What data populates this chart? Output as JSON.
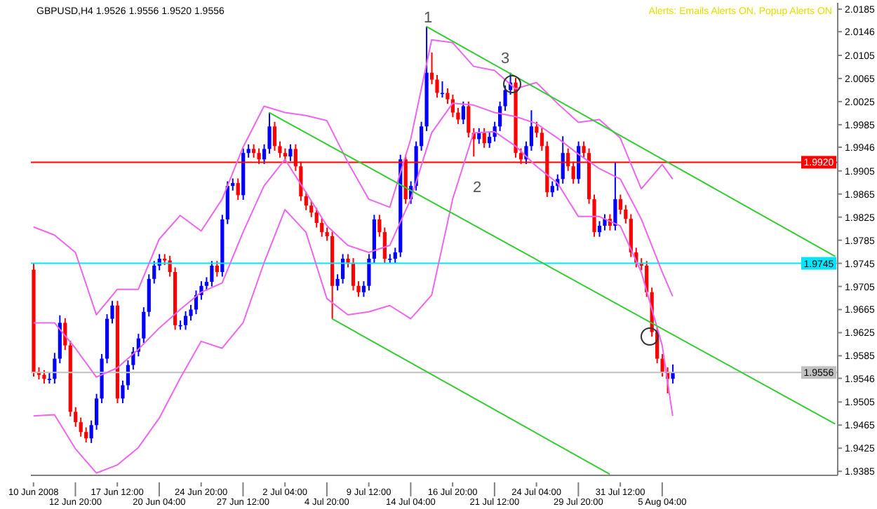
{
  "chart_data": {
    "type": "candlestick",
    "title": "GBPUSD,H4 1.9526 1.9556 1.9520 1.9556",
    "categories": [
      "10 Jun 2008",
      null,
      null,
      null,
      null,
      null,
      null,
      null,
      "12 Jun 20:00",
      null,
      null,
      null,
      null,
      null,
      null,
      null,
      "17 Jun 12:00",
      null,
      null,
      null,
      null,
      null,
      null,
      null,
      "20 Jun 04:00",
      null,
      null,
      null,
      null,
      null,
      null,
      null,
      "24 Jun 20:00",
      null,
      null,
      null,
      null,
      null,
      null,
      null,
      "27 Jun 12:00",
      null,
      null,
      null,
      null,
      null,
      null,
      null,
      "2 Jul 04:00",
      null,
      null,
      null,
      null,
      null,
      null,
      null,
      "4 Jul 20:00",
      null,
      null,
      null,
      null,
      null,
      null,
      null,
      "9 Jul 12:00",
      null,
      null,
      null,
      null,
      null,
      null,
      null,
      "14 Jul 04:00",
      null,
      null,
      null,
      null,
      null,
      null,
      null,
      "16 Jul 20:00",
      null,
      null,
      null,
      null,
      null,
      null,
      null,
      "21 Jul 12:00",
      null,
      null,
      null,
      null,
      null,
      null,
      null,
      "24 Jul 04:00",
      null,
      null,
      null,
      null,
      null,
      null,
      null,
      "29 Jul 20:00",
      null,
      null,
      null,
      null,
      null,
      null,
      null,
      "31 Jul 12:00",
      null,
      null,
      null,
      null,
      null,
      null,
      null,
      "5 Aug 04:00",
      null,
      null,
      null,
      null,
      null,
      null,
      null,
      null,
      null,
      null,
      null,
      null,
      null,
      null,
      null,
      null,
      null,
      null,
      null,
      null,
      null,
      null,
      null,
      null,
      null,
      null,
      null,
      null,
      null,
      null,
      null,
      null,
      null
    ],
    "ohlc": [
      [
        1.9734,
        1.9745,
        1.9549,
        1.9557
      ],
      [
        1.9557,
        1.9565,
        1.9544,
        1.9552
      ],
      [
        1.9552,
        1.956,
        1.9537,
        1.9545
      ],
      [
        1.9545,
        1.9556,
        1.9537,
        1.9545
      ],
      [
        1.9545,
        1.959,
        1.9537,
        1.958
      ],
      [
        1.958,
        1.9655,
        1.9572,
        1.9642
      ],
      [
        1.9642,
        1.965,
        1.9595,
        1.9603
      ],
      [
        1.9603,
        1.9611,
        1.948,
        1.9488
      ],
      [
        1.9488,
        1.9496,
        1.9462,
        1.947
      ],
      [
        1.947,
        1.9478,
        1.9445,
        1.9453
      ],
      [
        1.9453,
        1.9461,
        1.9435,
        1.9442
      ],
      [
        1.9442,
        1.9473,
        1.9434,
        1.9465
      ],
      [
        1.9465,
        1.9519,
        1.9457,
        1.9511
      ],
      [
        1.9511,
        1.9588,
        1.9503,
        1.958
      ],
      [
        1.958,
        1.9657,
        1.9572,
        1.9649
      ],
      [
        1.9649,
        1.968,
        1.9641,
        1.9672
      ],
      [
        1.9672,
        1.968,
        1.9503,
        1.9511
      ],
      [
        1.9511,
        1.9542,
        1.9503,
        1.9534
      ],
      [
        1.9534,
        1.9577,
        1.9526,
        1.9569
      ],
      [
        1.9569,
        1.96,
        1.9561,
        1.9592
      ],
      [
        1.9592,
        1.9623,
        1.9584,
        1.9615
      ],
      [
        1.9615,
        1.9669,
        1.9607,
        1.9661
      ],
      [
        1.9661,
        1.9726,
        1.9653,
        1.9718
      ],
      [
        1.9718,
        1.9749,
        1.971,
        1.9741
      ],
      [
        1.9741,
        1.9761,
        1.9733,
        1.9753
      ],
      [
        1.9753,
        1.9761,
        1.9742,
        1.975
      ],
      [
        1.975,
        1.9758,
        1.9722,
        1.973
      ],
      [
        1.973,
        1.9738,
        1.963,
        1.9638
      ],
      [
        1.9638,
        1.9646,
        1.963,
        1.9638
      ],
      [
        1.9638,
        1.9662,
        1.963,
        1.9654
      ],
      [
        1.9654,
        1.9673,
        1.9646,
        1.9665
      ],
      [
        1.9665,
        1.9698,
        1.9657,
        1.969
      ],
      [
        1.969,
        1.9714,
        1.9682,
        1.9706
      ],
      [
        1.9706,
        1.9721,
        1.9698,
        1.9713
      ],
      [
        1.9713,
        1.9749,
        1.9705,
        1.9741
      ],
      [
        1.9741,
        1.9749,
        1.9722,
        1.973
      ],
      [
        1.973,
        1.9829,
        1.9722,
        1.9821
      ],
      [
        1.9821,
        1.9887,
        1.9813,
        1.9879
      ],
      [
        1.9879,
        1.9892,
        1.9871,
        1.9884
      ],
      [
        1.9884,
        1.9892,
        1.9855,
        1.9863
      ],
      [
        1.9863,
        1.9944,
        1.9855,
        1.9936
      ],
      [
        1.9936,
        1.9951,
        1.9928,
        1.9943
      ],
      [
        1.9943,
        1.9951,
        1.9928,
        1.9936
      ],
      [
        1.9936,
        1.9944,
        1.9917,
        1.9925
      ],
      [
        1.9925,
        1.9951,
        1.9917,
        1.9943
      ],
      [
        1.9943,
        2.0006,
        1.9935,
        1.9982
      ],
      [
        1.9982,
        1.999,
        1.994,
        1.9948
      ],
      [
        1.9948,
        1.9956,
        1.9928,
        1.9936
      ],
      [
        1.9936,
        1.9944,
        1.9922,
        1.993
      ],
      [
        1.993,
        1.9951,
        1.9922,
        1.9943
      ],
      [
        1.9943,
        1.9951,
        1.9905,
        1.9913
      ],
      [
        1.9913,
        1.9921,
        1.9853,
        1.9861
      ],
      [
        1.9861,
        1.9869,
        1.9837,
        1.9845
      ],
      [
        1.9845,
        1.9853,
        1.9825,
        1.9833
      ],
      [
        1.9833,
        1.9841,
        1.9807,
        1.9815
      ],
      [
        1.9815,
        1.9823,
        1.9791,
        1.9799
      ],
      [
        1.9799,
        1.9807,
        1.9784,
        1.9792
      ],
      [
        1.9792,
        1.98,
        1.9649,
        1.9706
      ],
      [
        1.9706,
        1.9726,
        1.9698,
        1.9718
      ],
      [
        1.9718,
        1.9761,
        1.971,
        1.9753
      ],
      [
        1.9753,
        1.9761,
        1.9738,
        1.9746
      ],
      [
        1.9746,
        1.9754,
        1.9698,
        1.9706
      ],
      [
        1.9706,
        1.9714,
        1.9687,
        1.9695
      ],
      [
        1.9695,
        1.9714,
        1.9687,
        1.9706
      ],
      [
        1.9706,
        1.9761,
        1.9698,
        1.9753
      ],
      [
        1.9753,
        1.9829,
        1.9745,
        1.9821
      ],
      [
        1.9821,
        1.9829,
        1.9791,
        1.9799
      ],
      [
        1.9799,
        1.9807,
        1.9745,
        1.9753
      ],
      [
        1.9753,
        1.9761,
        1.9745,
        1.9753
      ],
      [
        1.9753,
        1.9772,
        1.9745,
        1.9764
      ],
      [
        1.9764,
        1.9933,
        1.9756,
        1.9925
      ],
      [
        1.9925,
        1.9933,
        1.9848,
        1.9856
      ],
      [
        1.9856,
        1.9887,
        1.9848,
        1.9879
      ],
      [
        1.9879,
        1.9956,
        1.9871,
        1.9948
      ],
      [
        1.9948,
        1.999,
        1.994,
        1.9982
      ],
      [
        1.9982,
        2.0155,
        1.9974,
        2.0075
      ],
      [
        2.0075,
        2.011,
        2.0055,
        2.0063
      ],
      [
        2.0063,
        2.0071,
        2.0032,
        2.004
      ],
      [
        2.004,
        2.006,
        2.0032,
        2.004
      ],
      [
        2.004,
        2.0048,
        2.0021,
        2.0029
      ],
      [
        2.0029,
        2.0037,
        1.9998,
        2.0006
      ],
      [
        2.0006,
        2.0014,
        1.9986,
        1.9994
      ],
      [
        1.9994,
        2.0025,
        1.9986,
        2.0017
      ],
      [
        2.0017,
        2.0025,
        1.9963,
        1.9971
      ],
      [
        1.9971,
        1.9979,
        1.993,
        1.996
      ],
      [
        1.996,
        1.9979,
        1.9952,
        1.9971
      ],
      [
        1.9971,
        1.9979,
        1.9945,
        1.9953
      ],
      [
        1.9953,
        1.9972,
        1.9945,
        1.9964
      ],
      [
        1.9964,
        1.999,
        1.9956,
        1.9982
      ],
      [
        1.9982,
        2.0025,
        1.9974,
        2.0017
      ],
      [
        2.0017,
        2.0053,
        2.0009,
        2.0045
      ],
      [
        2.0045,
        2.0075,
        2.0037,
        2.0058
      ],
      [
        2.0058,
        2.0066,
        1.9928,
        1.9936
      ],
      [
        1.9936,
        1.9944,
        1.9917,
        1.9925
      ],
      [
        1.9925,
        1.9956,
        1.9917,
        1.9948
      ],
      [
        1.9948,
        2.001,
        1.994,
        1.9982
      ],
      [
        1.9982,
        1.999,
        1.9963,
        1.9971
      ],
      [
        1.9971,
        1.9979,
        1.994,
        1.9948
      ],
      [
        1.9948,
        1.9956,
        1.986,
        1.9868
      ],
      [
        1.9868,
        1.9887,
        1.986,
        1.9879
      ],
      [
        1.9879,
        1.9899,
        1.9871,
        1.9891
      ],
      [
        1.9891,
        1.9965,
        1.9883,
        1.9936
      ],
      [
        1.9936,
        1.9944,
        1.9905,
        1.9913
      ],
      [
        1.9913,
        1.9921,
        1.9883,
        1.9891
      ],
      [
        1.9891,
        1.9956,
        1.9883,
        1.9948
      ],
      [
        1.9948,
        1.9956,
        1.9928,
        1.9936
      ],
      [
        1.9936,
        1.9944,
        1.9848,
        1.9856
      ],
      [
        1.9856,
        1.9864,
        1.9791,
        1.9799
      ],
      [
        1.9799,
        1.9818,
        1.9791,
        1.981
      ],
      [
        1.981,
        1.983,
        1.9802,
        1.9822
      ],
      [
        1.9822,
        1.983,
        1.9802,
        1.981
      ],
      [
        1.981,
        1.992,
        1.9802,
        1.9856
      ],
      [
        1.9856,
        1.9864,
        1.983,
        1.9838
      ],
      [
        1.9838,
        1.9846,
        1.9814,
        1.9822
      ],
      [
        1.9822,
        1.983,
        1.9756,
        1.9764
      ],
      [
        1.9764,
        1.9772,
        1.9738,
        1.9746
      ],
      [
        1.9746,
        1.9754,
        1.9733,
        1.9741
      ],
      [
        1.9741,
        1.9749,
        1.9687,
        1.9695
      ],
      [
        1.9695,
        1.9703,
        1.9618,
        1.9626
      ],
      [
        1.9626,
        1.9634,
        1.9572,
        1.958
      ],
      [
        1.958,
        1.9588,
        1.9549,
        1.9557
      ],
      [
        1.9557,
        1.9565,
        1.952,
        1.9545
      ],
      [
        1.9545,
        1.957,
        1.9537,
        1.9556
      ],
      null,
      null,
      null,
      null,
      null,
      null,
      null,
      null,
      null,
      null,
      null,
      null,
      null,
      null,
      null,
      null,
      null,
      null,
      null,
      null,
      null,
      null,
      null,
      null,
      null,
      null,
      null,
      null,
      null,
      null,
      null
    ],
    "colors": [
      "#ff0000",
      "#ff0000",
      "#ff0000",
      "#0000ff",
      "#0000ff",
      "#0000ff",
      "#ff0000",
      "#ff0000",
      "#ff0000",
      "#ff0000",
      "#ff0000",
      "#0000ff",
      "#0000ff",
      "#0000ff",
      "#0000ff",
      "#0000ff",
      "#ff0000",
      "#0000ff",
      "#0000ff",
      "#0000ff",
      "#0000ff",
      "#0000ff",
      "#0000ff",
      "#0000ff",
      "#0000ff",
      "#ff0000",
      "#ff0000",
      "#ff0000",
      "#0000ff",
      "#0000ff",
      "#0000ff",
      "#0000ff",
      "#0000ff",
      "#0000ff",
      "#0000ff",
      "#ff0000",
      "#0000ff",
      "#0000ff",
      "#0000ff",
      "#ff0000",
      "#0000ff",
      "#0000ff",
      "#ff0000",
      "#ff0000",
      "#0000ff",
      "#0000ff",
      "#ff0000",
      "#ff0000",
      "#ff0000",
      "#0000ff",
      "#ff0000",
      "#ff0000",
      "#ff0000",
      "#ff0000",
      "#ff0000",
      "#ff0000",
      "#ff0000",
      "#ff0000",
      "#0000ff",
      "#0000ff",
      "#ff0000",
      "#ff0000",
      "#ff0000",
      "#0000ff",
      "#0000ff",
      "#0000ff",
      "#ff0000",
      "#ff0000",
      "#0000ff",
      "#0000ff",
      "#0000ff",
      "#ff0000",
      "#0000ff",
      "#0000ff",
      "#0000ff",
      "#0000ff",
      "#ff0000",
      "#ff0000",
      "#0000ff",
      "#ff0000",
      "#ff0000",
      "#ff0000",
      "#0000ff",
      "#ff0000",
      "#ff0000",
      "#0000ff",
      "#ff0000",
      "#0000ff",
      "#0000ff",
      "#0000ff",
      "#0000ff",
      "#0000ff",
      "#ff0000",
      "#ff0000",
      "#0000ff",
      "#0000ff",
      "#ff0000",
      "#ff0000",
      "#ff0000",
      "#0000ff",
      "#0000ff",
      "#0000ff",
      "#ff0000",
      "#ff0000",
      "#0000ff",
      "#ff0000",
      "#ff0000",
      "#ff0000",
      "#0000ff",
      "#0000ff",
      "#ff0000",
      "#0000ff",
      "#ff0000",
      "#ff0000",
      "#ff0000",
      "#ff0000",
      "#ff0000",
      "#ff0000",
      "#ff0000",
      "#ff0000",
      "#ff0000",
      "#ff0000",
      "#0000ff",
      null,
      null,
      null,
      null,
      null,
      null,
      null,
      null,
      null,
      null,
      null,
      null,
      null,
      null,
      null,
      null,
      null,
      null,
      null,
      null,
      null,
      null,
      null,
      null,
      null,
      null,
      null,
      null,
      null,
      null,
      null
    ],
    "ylim": [
      1.9378,
      2.0196
    ],
    "yticks": [
      2.0185,
      2.0146,
      2.0105,
      2.0065,
      2.0025,
      1.9985,
      1.9946,
      1.9905,
      1.9865,
      1.9825,
      1.9785,
      1.9745,
      1.9705,
      1.9665,
      1.9625,
      1.9585,
      1.9546,
      1.9505,
      1.9465,
      1.9425,
      1.9385
    ],
    "series": [
      {
        "type": "line",
        "color": "#ee66ee",
        "values": [
          1.9808,
          null,
          null,
          null,
          1.9794,
          null,
          null,
          null,
          1.9764,
          null,
          null,
          null,
          1.9656,
          null,
          null,
          null,
          1.97,
          null,
          null,
          null,
          1.97,
          null,
          null,
          null,
          1.9787,
          null,
          null,
          null,
          1.9828,
          null,
          null,
          null,
          1.9801,
          null,
          null,
          null,
          1.9856,
          null,
          null,
          null,
          1.9946,
          null,
          null,
          null,
          2.0017,
          null,
          null,
          null,
          2.0006,
          null,
          null,
          null,
          2.0001,
          null,
          null,
          null,
          1.9992,
          null,
          null,
          null,
          1.992,
          null,
          null,
          null,
          1.9856,
          null,
          null,
          null,
          1.9842,
          null,
          null,
          null,
          1.996,
          null,
          null,
          null,
          2.0132,
          null,
          null,
          null,
          2.0127,
          null,
          null,
          null,
          2.0086,
          null,
          null,
          null,
          2.0079,
          null,
          null,
          null,
          2.0047,
          null,
          null,
          null,
          2.0058,
          null,
          null,
          null,
          2.0022,
          null,
          null,
          null,
          1.9989,
          null,
          null,
          null,
          1.9994,
          null,
          null,
          null,
          1.9962,
          null,
          null,
          null,
          1.9874,
          null,
          null,
          null,
          1.9916,
          null,
          1.9891,
          null,
          null,
          null,
          null,
          null,
          null,
          null,
          null,
          null,
          null,
          null,
          null,
          null,
          null,
          null,
          null,
          null,
          null,
          null,
          null,
          null,
          null,
          null,
          null,
          null,
          null,
          null,
          null,
          null,
          null,
          null
        ]
      },
      {
        "type": "line",
        "color": "#ee66ee",
        "values": [
          1.9642,
          null,
          null,
          null,
          1.9642,
          null,
          null,
          null,
          1.9598,
          null,
          null,
          null,
          1.9548,
          null,
          null,
          null,
          1.9564,
          null,
          null,
          null,
          1.9596,
          null,
          null,
          null,
          1.9633,
          null,
          null,
          null,
          1.9665,
          null,
          null,
          null,
          1.9695,
          null,
          null,
          null,
          1.9711,
          null,
          null,
          null,
          1.9799,
          null,
          null,
          null,
          1.9879,
          null,
          null,
          null,
          1.9925,
          null,
          null,
          null,
          1.9868,
          null,
          null,
          null,
          1.981,
          null,
          null,
          null,
          1.9776,
          null,
          null,
          null,
          1.9764,
          null,
          null,
          null,
          1.9776,
          null,
          null,
          null,
          1.9856,
          null,
          null,
          null,
          1.9971,
          null,
          null,
          null,
          2.0022,
          null,
          null,
          null,
          2.0019,
          null,
          null,
          null,
          2.0006,
          null,
          null,
          null,
          1.9999,
          null,
          null,
          null,
          1.9987,
          null,
          null,
          null,
          1.9962,
          null,
          null,
          null,
          1.9934,
          null,
          null,
          null,
          1.9909,
          null,
          null,
          null,
          1.9891,
          null,
          null,
          null,
          1.9822,
          null,
          null,
          null,
          1.973,
          null,
          1.9688,
          null,
          null,
          null,
          null,
          null,
          null,
          null,
          null,
          null,
          null,
          null,
          null,
          null,
          null,
          null,
          null,
          null,
          null,
          null,
          null,
          null,
          null,
          null,
          null,
          null,
          null,
          null,
          null,
          null,
          null,
          null
        ]
      },
      {
        "type": "line",
        "color": "#ee66ee",
        "values": [
          1.9481,
          null,
          null,
          null,
          1.9483,
          null,
          null,
          null,
          1.9424,
          null,
          null,
          null,
          1.9382,
          null,
          null,
          null,
          1.9396,
          null,
          null,
          null,
          1.9426,
          null,
          null,
          null,
          1.9477,
          null,
          null,
          null,
          1.9546,
          null,
          null,
          null,
          1.961,
          null,
          null,
          null,
          1.9598,
          null,
          null,
          null,
          1.9642,
          null,
          null,
          null,
          1.9746,
          null,
          null,
          null,
          1.9838,
          null,
          null,
          null,
          1.9799,
          null,
          null,
          null,
          1.9684,
          null,
          null,
          null,
          1.9656,
          null,
          null,
          null,
          1.9661,
          null,
          null,
          null,
          1.9672,
          null,
          null,
          null,
          1.9649,
          null,
          null,
          null,
          1.969,
          null,
          null,
          null,
          1.9856,
          null,
          null,
          null,
          1.9971,
          null,
          null,
          null,
          1.9973,
          null,
          null,
          null,
          1.9948,
          null,
          null,
          null,
          1.9913,
          null,
          null,
          null,
          1.9884,
          null,
          null,
          null,
          1.9826,
          null,
          null,
          null,
          1.9826,
          null,
          null,
          null,
          1.981,
          null,
          null,
          null,
          1.973,
          null,
          null,
          null,
          1.9603,
          null,
          1.9481,
          null,
          null,
          null,
          null,
          null,
          null,
          null,
          null,
          null,
          null,
          null,
          null,
          null,
          null,
          null,
          null,
          null,
          null,
          null,
          null,
          null,
          null,
          null,
          null,
          null,
          null,
          null,
          null,
          null,
          null,
          null
        ]
      },
      {
        "type": "line",
        "color": "#33cc33",
        "values": [
          null,
          null,
          null,
          null,
          null,
          null,
          null,
          null,
          null,
          null,
          null,
          null,
          null,
          null,
          null,
          null,
          null,
          null,
          null,
          null,
          null,
          null,
          null,
          null,
          null,
          null,
          null,
          null,
          null,
          null,
          null,
          null,
          null,
          null,
          null,
          null,
          null,
          null,
          null,
          null,
          null,
          null,
          null,
          null,
          null,
          null,
          null,
          null,
          null,
          null,
          null,
          null,
          null,
          null,
          null,
          null,
          null,
          null,
          null,
          null,
          null,
          null,
          null,
          null,
          null,
          null,
          null,
          null,
          null,
          null,
          null,
          null,
          null,
          null,
          null,
          2.0155,
          null,
          null,
          null,
          null,
          null,
          null,
          null,
          null,
          null,
          null,
          null,
          null,
          null,
          null,
          null,
          null,
          null,
          null,
          null,
          null,
          null,
          null,
          null,
          null,
          null,
          null,
          null,
          null,
          null,
          null,
          null,
          null,
          null,
          null,
          null,
          null,
          null,
          null,
          null,
          null,
          null,
          null,
          null,
          null,
          null,
          null,
          null,
          null,
          null,
          null,
          null,
          null,
          null,
          null,
          null,
          null,
          null,
          null,
          null,
          null,
          null,
          null,
          null,
          null,
          null,
          null,
          null,
          null,
          null,
          null,
          null,
          null,
          null,
          null,
          null,
          null,
          null,
          1.9757
        ]
      },
      {
        "type": "line",
        "color": "#33cc33",
        "values": [
          null,
          null,
          null,
          null,
          null,
          null,
          null,
          null,
          null,
          null,
          null,
          null,
          null,
          null,
          null,
          null,
          null,
          null,
          null,
          null,
          null,
          null,
          null,
          null,
          null,
          null,
          null,
          null,
          null,
          null,
          null,
          null,
          null,
          null,
          null,
          null,
          null,
          null,
          null,
          null,
          null,
          null,
          null,
          null,
          null,
          2.0006,
          null,
          null,
          null,
          null,
          null,
          null,
          null,
          null,
          null,
          null,
          null,
          null,
          null,
          null,
          null,
          null,
          null,
          null,
          null,
          null,
          null,
          null,
          null,
          null,
          null,
          null,
          null,
          null,
          null,
          null,
          null,
          null,
          null,
          null,
          null,
          null,
          null,
          null,
          null,
          null,
          null,
          null,
          null,
          null,
          null,
          null,
          null,
          null,
          null,
          null,
          null,
          null,
          null,
          null,
          null,
          null,
          null,
          null,
          null,
          null,
          null,
          null,
          null,
          null,
          null,
          null,
          null,
          null,
          null,
          null,
          null,
          null,
          null,
          null,
          null,
          null,
          null,
          null,
          null,
          null,
          null,
          null,
          null,
          null,
          null,
          null,
          null,
          null,
          null,
          null,
          null,
          null,
          null,
          null,
          null,
          null,
          null,
          null,
          null,
          null,
          null,
          null,
          null,
          null,
          null,
          null,
          null,
          1.9467
        ]
      },
      {
        "type": "line",
        "color": "#33cc33",
        "values": [
          null,
          null,
          null,
          null,
          null,
          null,
          null,
          null,
          null,
          null,
          null,
          null,
          null,
          null,
          null,
          null,
          null,
          null,
          null,
          null,
          null,
          null,
          null,
          null,
          null,
          null,
          null,
          null,
          null,
          null,
          null,
          null,
          null,
          null,
          null,
          null,
          null,
          null,
          null,
          null,
          null,
          null,
          null,
          null,
          null,
          null,
          null,
          null,
          null,
          null,
          null,
          null,
          null,
          null,
          null,
          null,
          null,
          1.9649,
          null,
          null,
          null,
          null,
          null,
          null,
          null,
          null,
          null,
          null,
          null,
          null,
          null,
          null,
          null,
          null,
          null,
          null,
          null,
          null,
          null,
          null,
          null,
          null,
          null,
          null,
          null,
          null,
          null,
          null,
          null,
          null,
          null,
          null,
          null,
          null,
          null,
          null,
          null,
          null,
          null,
          null,
          null,
          null,
          null,
          null,
          null,
          null,
          null,
          null,
          null,
          null,
          1.938,
          null,
          null,
          null,
          null,
          null,
          null,
          null,
          null,
          null,
          null,
          null,
          null,
          null,
          null,
          null,
          null,
          null,
          null,
          null,
          null,
          null,
          null,
          null,
          null,
          null,
          null,
          null,
          null,
          null,
          null,
          null,
          null,
          null,
          null,
          null,
          null,
          null,
          null,
          null,
          null,
          null,
          null,
          null
        ]
      }
    ],
    "ref_lines": [
      {
        "axis": "y",
        "value": 1.992,
        "label": "1.9920",
        "color": "#ff0000"
      },
      {
        "axis": "y",
        "value": 1.9745,
        "label": "1.9745",
        "color": "#00e5ff"
      },
      {
        "axis": "y",
        "value": 1.9556,
        "label": "1.9556",
        "color": "#c0c0c0"
      }
    ],
    "annotations": [
      "Alerts: Emails Alerts ON, Popup Alerts ON",
      "1",
      "2",
      "3"
    ]
  }
}
